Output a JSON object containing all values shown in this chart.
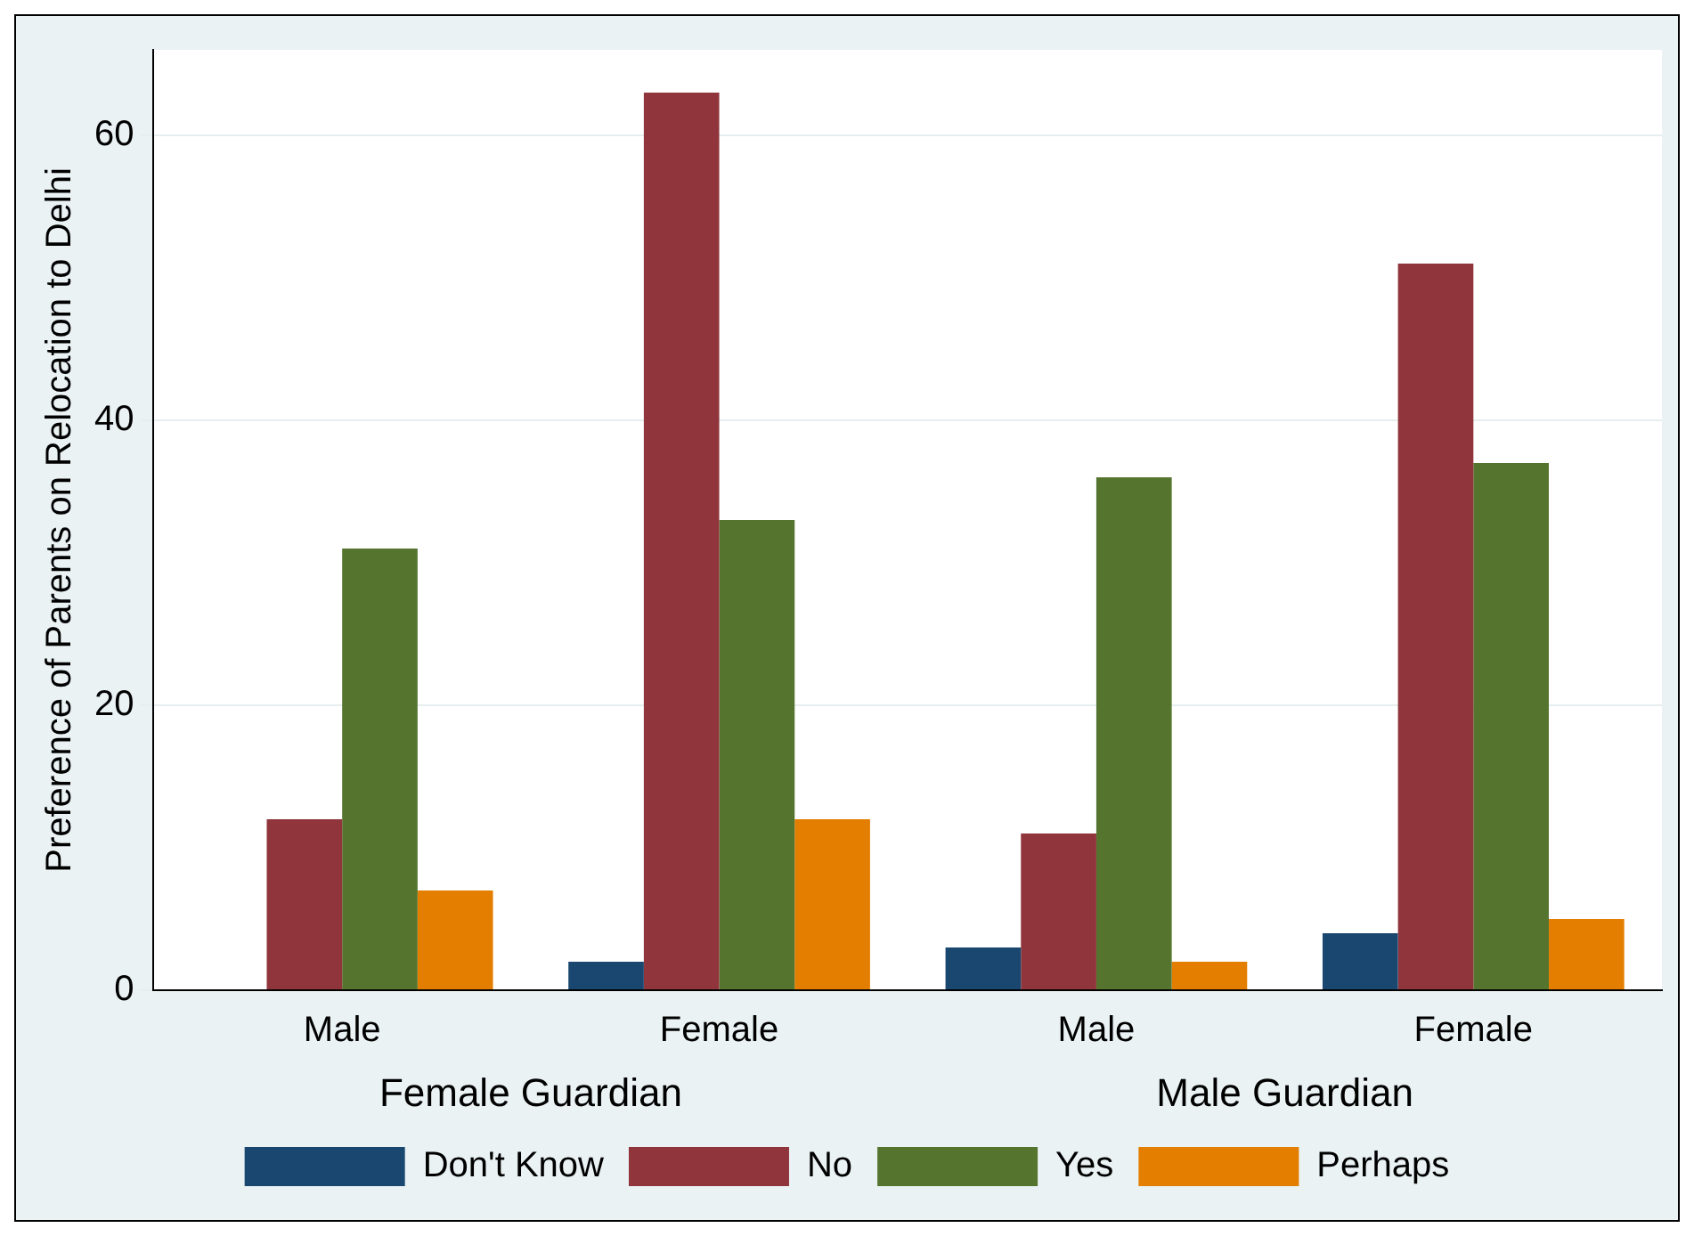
{
  "chart_data": {
    "type": "bar",
    "ylabel": "Preference of Parents on Relocation to Delhi",
    "categories": [
      "Male",
      "Female",
      "Male",
      "Female"
    ],
    "series": [
      {
        "name": "Don't Know",
        "color": "#1a476f",
        "values": [
          0,
          2,
          3,
          4
        ]
      },
      {
        "name": "No",
        "color": "#90353b",
        "values": [
          12,
          63,
          11,
          51
        ]
      },
      {
        "name": "Yes",
        "color": "#55752f",
        "values": [
          31,
          33,
          36,
          37
        ]
      },
      {
        "name": "Perhaps",
        "color": "#e37e00",
        "values": [
          7,
          12,
          2,
          5
        ]
      }
    ],
    "annotations": [
      "Female Guardian",
      "Male Guardian"
    ],
    "ylim": [
      0,
      66
    ],
    "yticks": [
      0,
      20,
      40,
      60
    ],
    "grid": "y",
    "legend": "bottom"
  }
}
